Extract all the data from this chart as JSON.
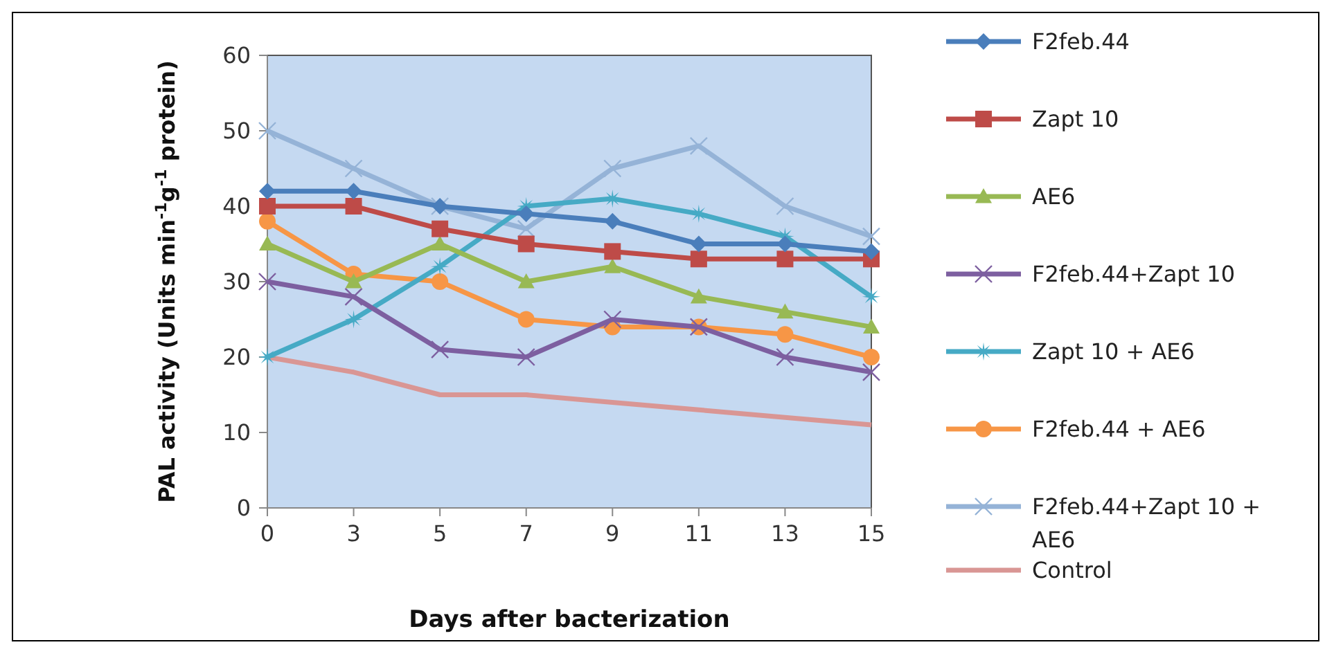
{
  "chart_data": {
    "type": "line",
    "xlabel": "Days after bacterization",
    "ylabel": "PAL activity (Units min$^{-1}$g$^{-1}$ protein)",
    "categories": [
      "0",
      "3",
      "5",
      "7",
      "9",
      "11",
      "13",
      "15"
    ],
    "ylim": [
      0,
      60
    ],
    "yticks": [
      0,
      10,
      20,
      30,
      40,
      50,
      60
    ],
    "grid": false,
    "legend": "right",
    "series": [
      {
        "name": "F2feb.44",
        "color": "#4a7ebb",
        "marker": "diamond",
        "values": [
          42,
          42,
          40,
          39,
          38,
          35,
          35,
          34
        ]
      },
      {
        "name": "Zapt 10",
        "color": "#be4b48",
        "marker": "square",
        "values": [
          40,
          40,
          37,
          35,
          34,
          33,
          33,
          33
        ]
      },
      {
        "name": "AE6",
        "color": "#98b954",
        "marker": "triangle",
        "values": [
          35,
          30,
          35,
          30,
          32,
          28,
          26,
          24
        ]
      },
      {
        "name": "F2feb.44+Zapt 10",
        "color": "#7d5fa0",
        "marker": "cross",
        "values": [
          30,
          28,
          21,
          20,
          25,
          24,
          20,
          18
        ]
      },
      {
        "name": "Zapt 10 + AE6",
        "color": "#46aac5",
        "marker": "star",
        "values": [
          20,
          25,
          32,
          40,
          41,
          39,
          36,
          28
        ]
      },
      {
        "name": "F2feb.44 + AE6",
        "color": "#f79646",
        "marker": "circle",
        "values": [
          38,
          31,
          30,
          25,
          24,
          24,
          23,
          20
        ]
      },
      {
        "name": "F2feb.44+Zapt 10 + AE6",
        "color": "#95b3d7",
        "marker": "cross",
        "values": [
          50,
          45,
          40,
          37,
          45,
          48,
          40,
          36
        ]
      },
      {
        "name": "Control",
        "color": "#d99694",
        "marker": "none",
        "values": [
          20,
          18,
          15,
          15,
          14,
          13,
          12,
          11
        ]
      }
    ]
  }
}
